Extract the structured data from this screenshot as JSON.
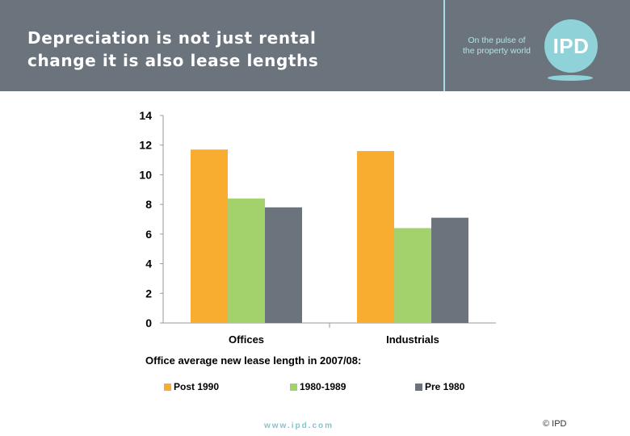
{
  "header": {
    "title_line1": "Depreciation is not just rental",
    "title_line2": "change it is also lease lengths",
    "tagline_line1": "On the pulse of",
    "tagline_line2": "the property world",
    "logo_text": "IPD",
    "bg_color": "#6b737c",
    "accent_color": "#8fd3d9"
  },
  "chart_data": {
    "type": "bar",
    "categories": [
      "Offices",
      "Industrials"
    ],
    "series": [
      {
        "name": "Post 1990",
        "values": [
          11.7,
          11.6
        ],
        "color": "#f8ac30"
      },
      {
        "name": "1980-1989",
        "values": [
          8.4,
          6.4
        ],
        "color": "#a3d16b"
      },
      {
        "name": "Pre 1980",
        "values": [
          7.8,
          7.1
        ],
        "color": "#6b737c"
      }
    ],
    "title": "",
    "xlabel": "Office average new lease length in 2007/08:",
    "ylabel": "",
    "ylim": [
      0,
      14
    ],
    "yticks": [
      0,
      2,
      4,
      6,
      8,
      10,
      12,
      14
    ],
    "grid": false,
    "legend_position": "bottom"
  },
  "footer": {
    "url": "www.ipd.com",
    "copyright": "© IPD"
  }
}
